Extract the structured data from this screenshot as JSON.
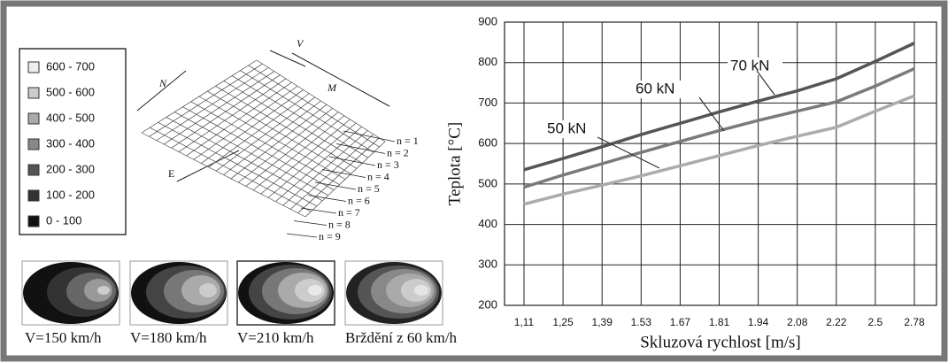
{
  "legend": {
    "entries": [
      "600 - 700",
      "500 - 600",
      "400 - 500",
      "300 - 400",
      "200 - 300",
      "100 - 200",
      "0 - 100"
    ]
  },
  "diagram": {
    "labels": {
      "N": "N",
      "V": "V",
      "M": "M",
      "E": "E"
    },
    "rows": [
      "n = 1",
      "n = 2",
      "n = 3",
      "n = 4",
      "n = 5",
      "n = 6",
      "n = 7",
      "n = 8",
      "n = 9"
    ]
  },
  "captions": [
    "V=150 km/h",
    "V=180 km/h",
    "V=210 km/h",
    "Brždění z 60 km/h"
  ],
  "chart_data": {
    "type": "line",
    "x_label": "Skluzová rychlost [m/s]",
    "y_label": "Teplota [°C]",
    "categories": [
      "1,11",
      "1,25",
      "1,39",
      "1.53",
      "1.67",
      "1.81",
      "1.94",
      "2.08",
      "2.22",
      "2.5",
      "2.78"
    ],
    "series": [
      {
        "name": "70 kN",
        "color": "#555555",
        "values": [
          535,
          563,
          592,
          622,
          650,
          678,
          705,
          730,
          760,
          803,
          848
        ]
      },
      {
        "name": "60 kN",
        "color": "#7a7a7a",
        "values": [
          492,
          522,
          550,
          578,
          605,
          632,
          657,
          680,
          703,
          742,
          785
        ]
      },
      {
        "name": "50 kN",
        "color": "#ababab",
        "values": [
          450,
          475,
          497,
          520,
          545,
          570,
          595,
          618,
          640,
          680,
          718
        ]
      }
    ],
    "ylim": [
      200,
      900
    ],
    "yticks": [
      200,
      300,
      400,
      500,
      600,
      700,
      800,
      900
    ],
    "grid": true
  }
}
